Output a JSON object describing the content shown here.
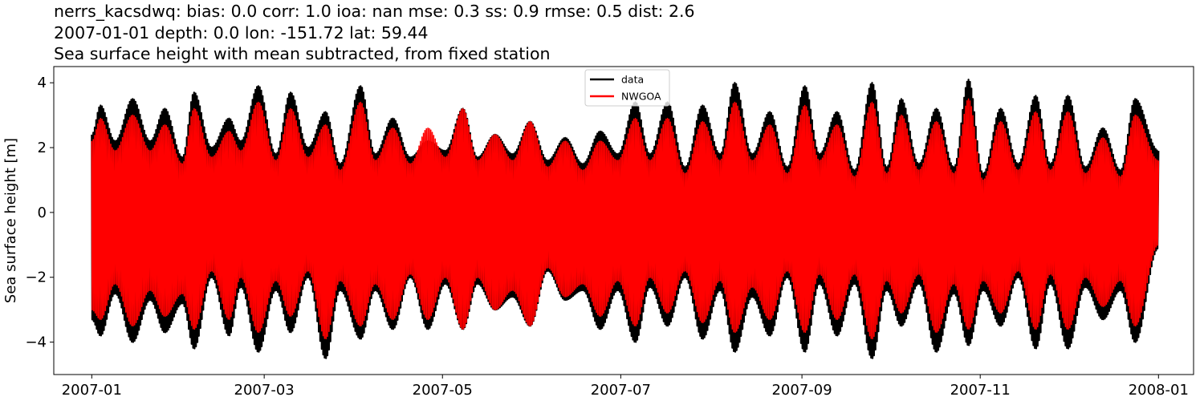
{
  "chart_data": {
    "type": "line",
    "title_lines": [
      "nerrs_kacsdwq: bias: 0.0  corr: 1.0  ioa: nan  mse: 0.3  ss: 0.9  rmse: 0.5  dist: 2.6",
      "2007-01-01 depth: 0.0 lon: -151.72 lat: 59.44",
      "Sea surface height with mean subtracted, from fixed station"
    ],
    "xlabel": "",
    "ylabel": "Sea surface height [m]",
    "x_ticks": [
      "2007-01",
      "2007-03",
      "2007-05",
      "2007-07",
      "2007-09",
      "2007-11",
      "2008-01"
    ],
    "x_range": [
      "2006-12-19",
      "2008-01-13"
    ],
    "data_range": [
      "2007-01-01",
      "2008-01-01"
    ],
    "y_ticks": [
      4,
      2,
      0,
      -2,
      -4
    ],
    "y_tick_labels": [
      "4",
      "2",
      "0",
      "−2",
      "−4"
    ],
    "ylim": [
      -5.0,
      4.5
    ],
    "grid": false,
    "legend_position": "top-center",
    "series": [
      {
        "name": "data",
        "color": "#000000",
        "envelope_dates": [
          "2007-01-01",
          "2007-01-04",
          "2007-01-09",
          "2007-01-15",
          "2007-01-21",
          "2007-01-26",
          "2007-02-01",
          "2007-02-05",
          "2007-02-11",
          "2007-02-17",
          "2007-02-21",
          "2007-02-27",
          "2007-03-05",
          "2007-03-10",
          "2007-03-16",
          "2007-03-22",
          "2007-03-27",
          "2007-04-03",
          "2007-04-08",
          "2007-04-14",
          "2007-04-20",
          "2007-04-26",
          "2007-05-02",
          "2007-05-08",
          "2007-05-13",
          "2007-05-19",
          "2007-05-25",
          "2007-05-31",
          "2007-06-06",
          "2007-06-12",
          "2007-06-18",
          "2007-06-24",
          "2007-06-30",
          "2007-07-06",
          "2007-07-11",
          "2007-07-17",
          "2007-07-23",
          "2007-07-29",
          "2007-08-04",
          "2007-08-09",
          "2007-08-15",
          "2007-08-21",
          "2007-08-27",
          "2007-09-02",
          "2007-09-07",
          "2007-09-13",
          "2007-09-19",
          "2007-09-25",
          "2007-09-30",
          "2007-10-05",
          "2007-10-11",
          "2007-10-17",
          "2007-10-23",
          "2007-10-28",
          "2007-11-02",
          "2007-11-08",
          "2007-11-14",
          "2007-11-20",
          "2007-11-25",
          "2007-12-01",
          "2007-12-07",
          "2007-12-13",
          "2007-12-19",
          "2007-12-24",
          "2008-01-01"
        ],
        "upper_envelope": [
          2.4,
          3.3,
          2.2,
          3.5,
          2.2,
          3.2,
          1.7,
          3.7,
          2.0,
          2.9,
          2.2,
          3.9,
          1.8,
          3.7,
          2.0,
          3.1,
          1.5,
          3.9,
          1.8,
          2.9,
          1.7,
          2.2,
          1.9,
          3.2,
          1.7,
          2.4,
          1.8,
          2.8,
          1.6,
          2.3,
          1.5,
          2.5,
          1.8,
          3.4,
          1.8,
          3.4,
          1.4,
          3.3,
          1.8,
          4.0,
          1.8,
          3.1,
          1.4,
          3.9,
          1.8,
          3.1,
          1.3,
          4.0,
          1.4,
          3.5,
          1.5,
          3.2,
          1.4,
          4.1,
          1.2,
          3.2,
          1.5,
          3.6,
          1.5,
          3.6,
          1.4,
          2.6,
          1.3,
          3.5,
          1.9
        ],
        "lower_envelope": [
          -3.3,
          -3.8,
          -2.5,
          -4.0,
          -2.7,
          -3.7,
          -2.8,
          -4.2,
          -2.0,
          -3.8,
          -2.3,
          -4.3,
          -2.4,
          -3.7,
          -2.0,
          -4.5,
          -2.4,
          -3.9,
          -2.4,
          -3.6,
          -2.0,
          -3.6,
          -2.2,
          -3.6,
          -2.2,
          -3.0,
          -2.6,
          -3.5,
          -1.8,
          -2.7,
          -2.4,
          -3.6,
          -2.4,
          -4.0,
          -2.3,
          -3.5,
          -2.0,
          -3.9,
          -2.4,
          -4.3,
          -2.6,
          -3.8,
          -2.0,
          -4.3,
          -2.2,
          -3.8,
          -2.2,
          -4.5,
          -2.4,
          -3.5,
          -2.2,
          -4.3,
          -2.5,
          -4.1,
          -2.4,
          -3.5,
          -2.0,
          -4.2,
          -2.2,
          -4.2,
          -2.3,
          -3.3,
          -2.4,
          -4.0,
          -1.1
        ]
      },
      {
        "name": "NWGOA",
        "color": "#ff0000",
        "envelope_dates": [
          "2007-01-01",
          "2007-01-04",
          "2007-01-09",
          "2007-01-15",
          "2007-01-21",
          "2007-01-26",
          "2007-02-01",
          "2007-02-05",
          "2007-02-11",
          "2007-02-17",
          "2007-02-21",
          "2007-02-27",
          "2007-03-05",
          "2007-03-10",
          "2007-03-16",
          "2007-03-22",
          "2007-03-27",
          "2007-04-03",
          "2007-04-08",
          "2007-04-14",
          "2007-04-20",
          "2007-04-26",
          "2007-05-02",
          "2007-05-08",
          "2007-05-13",
          "2007-05-19",
          "2007-05-25",
          "2007-05-31",
          "2007-06-06",
          "2007-06-12",
          "2007-06-18",
          "2007-06-24",
          "2007-06-30",
          "2007-07-06",
          "2007-07-11",
          "2007-07-17",
          "2007-07-23",
          "2007-07-29",
          "2007-08-04",
          "2007-08-09",
          "2007-08-15",
          "2007-08-21",
          "2007-08-27",
          "2007-09-02",
          "2007-09-07",
          "2007-09-13",
          "2007-09-19",
          "2007-09-25",
          "2007-09-30",
          "2007-10-05",
          "2007-10-11",
          "2007-10-17",
          "2007-10-23",
          "2007-10-28",
          "2007-11-02",
          "2007-11-08",
          "2007-11-14",
          "2007-11-20",
          "2007-11-25",
          "2007-12-01",
          "2007-12-07",
          "2007-12-13",
          "2007-12-19",
          "2007-12-24",
          "2008-01-01"
        ],
        "upper_envelope": [
          2.2,
          2.9,
          1.9,
          3.0,
          1.9,
          2.7,
          1.5,
          3.2,
          1.7,
          2.5,
          1.9,
          3.4,
          1.6,
          3.2,
          1.7,
          2.7,
          1.3,
          3.4,
          1.6,
          2.6,
          1.5,
          2.6,
          1.7,
          3.2,
          1.6,
          2.4,
          1.6,
          2.8,
          1.4,
          2.2,
          1.3,
          2.2,
          1.6,
          2.9,
          1.6,
          2.9,
          1.2,
          2.8,
          1.6,
          3.4,
          1.6,
          2.7,
          1.2,
          3.3,
          1.6,
          2.7,
          1.1,
          3.4,
          1.2,
          3.0,
          1.3,
          2.8,
          1.2,
          3.5,
          1.0,
          2.8,
          1.3,
          3.1,
          1.3,
          3.1,
          1.2,
          2.3,
          1.1,
          3.0,
          1.6
        ],
        "lower_envelope": [
          -3.0,
          -3.3,
          -2.2,
          -3.5,
          -2.4,
          -3.2,
          -2.5,
          -3.6,
          -1.8,
          -3.3,
          -2.0,
          -3.7,
          -2.1,
          -3.2,
          -1.8,
          -3.9,
          -2.1,
          -3.5,
          -2.2,
          -3.3,
          -1.9,
          -3.3,
          -2.0,
          -3.6,
          -2.0,
          -3.0,
          -2.4,
          -3.5,
          -1.7,
          -2.6,
          -2.2,
          -3.2,
          -2.1,
          -3.5,
          -2.0,
          -3.1,
          -1.8,
          -3.4,
          -2.1,
          -3.7,
          -2.3,
          -3.3,
          -1.8,
          -3.7,
          -1.9,
          -3.3,
          -1.9,
          -3.9,
          -2.1,
          -3.1,
          -1.9,
          -3.7,
          -2.2,
          -3.6,
          -2.1,
          -3.1,
          -1.8,
          -3.6,
          -1.9,
          -3.6,
          -2.0,
          -2.9,
          -2.1,
          -3.5,
          -1.0
        ]
      }
    ]
  }
}
